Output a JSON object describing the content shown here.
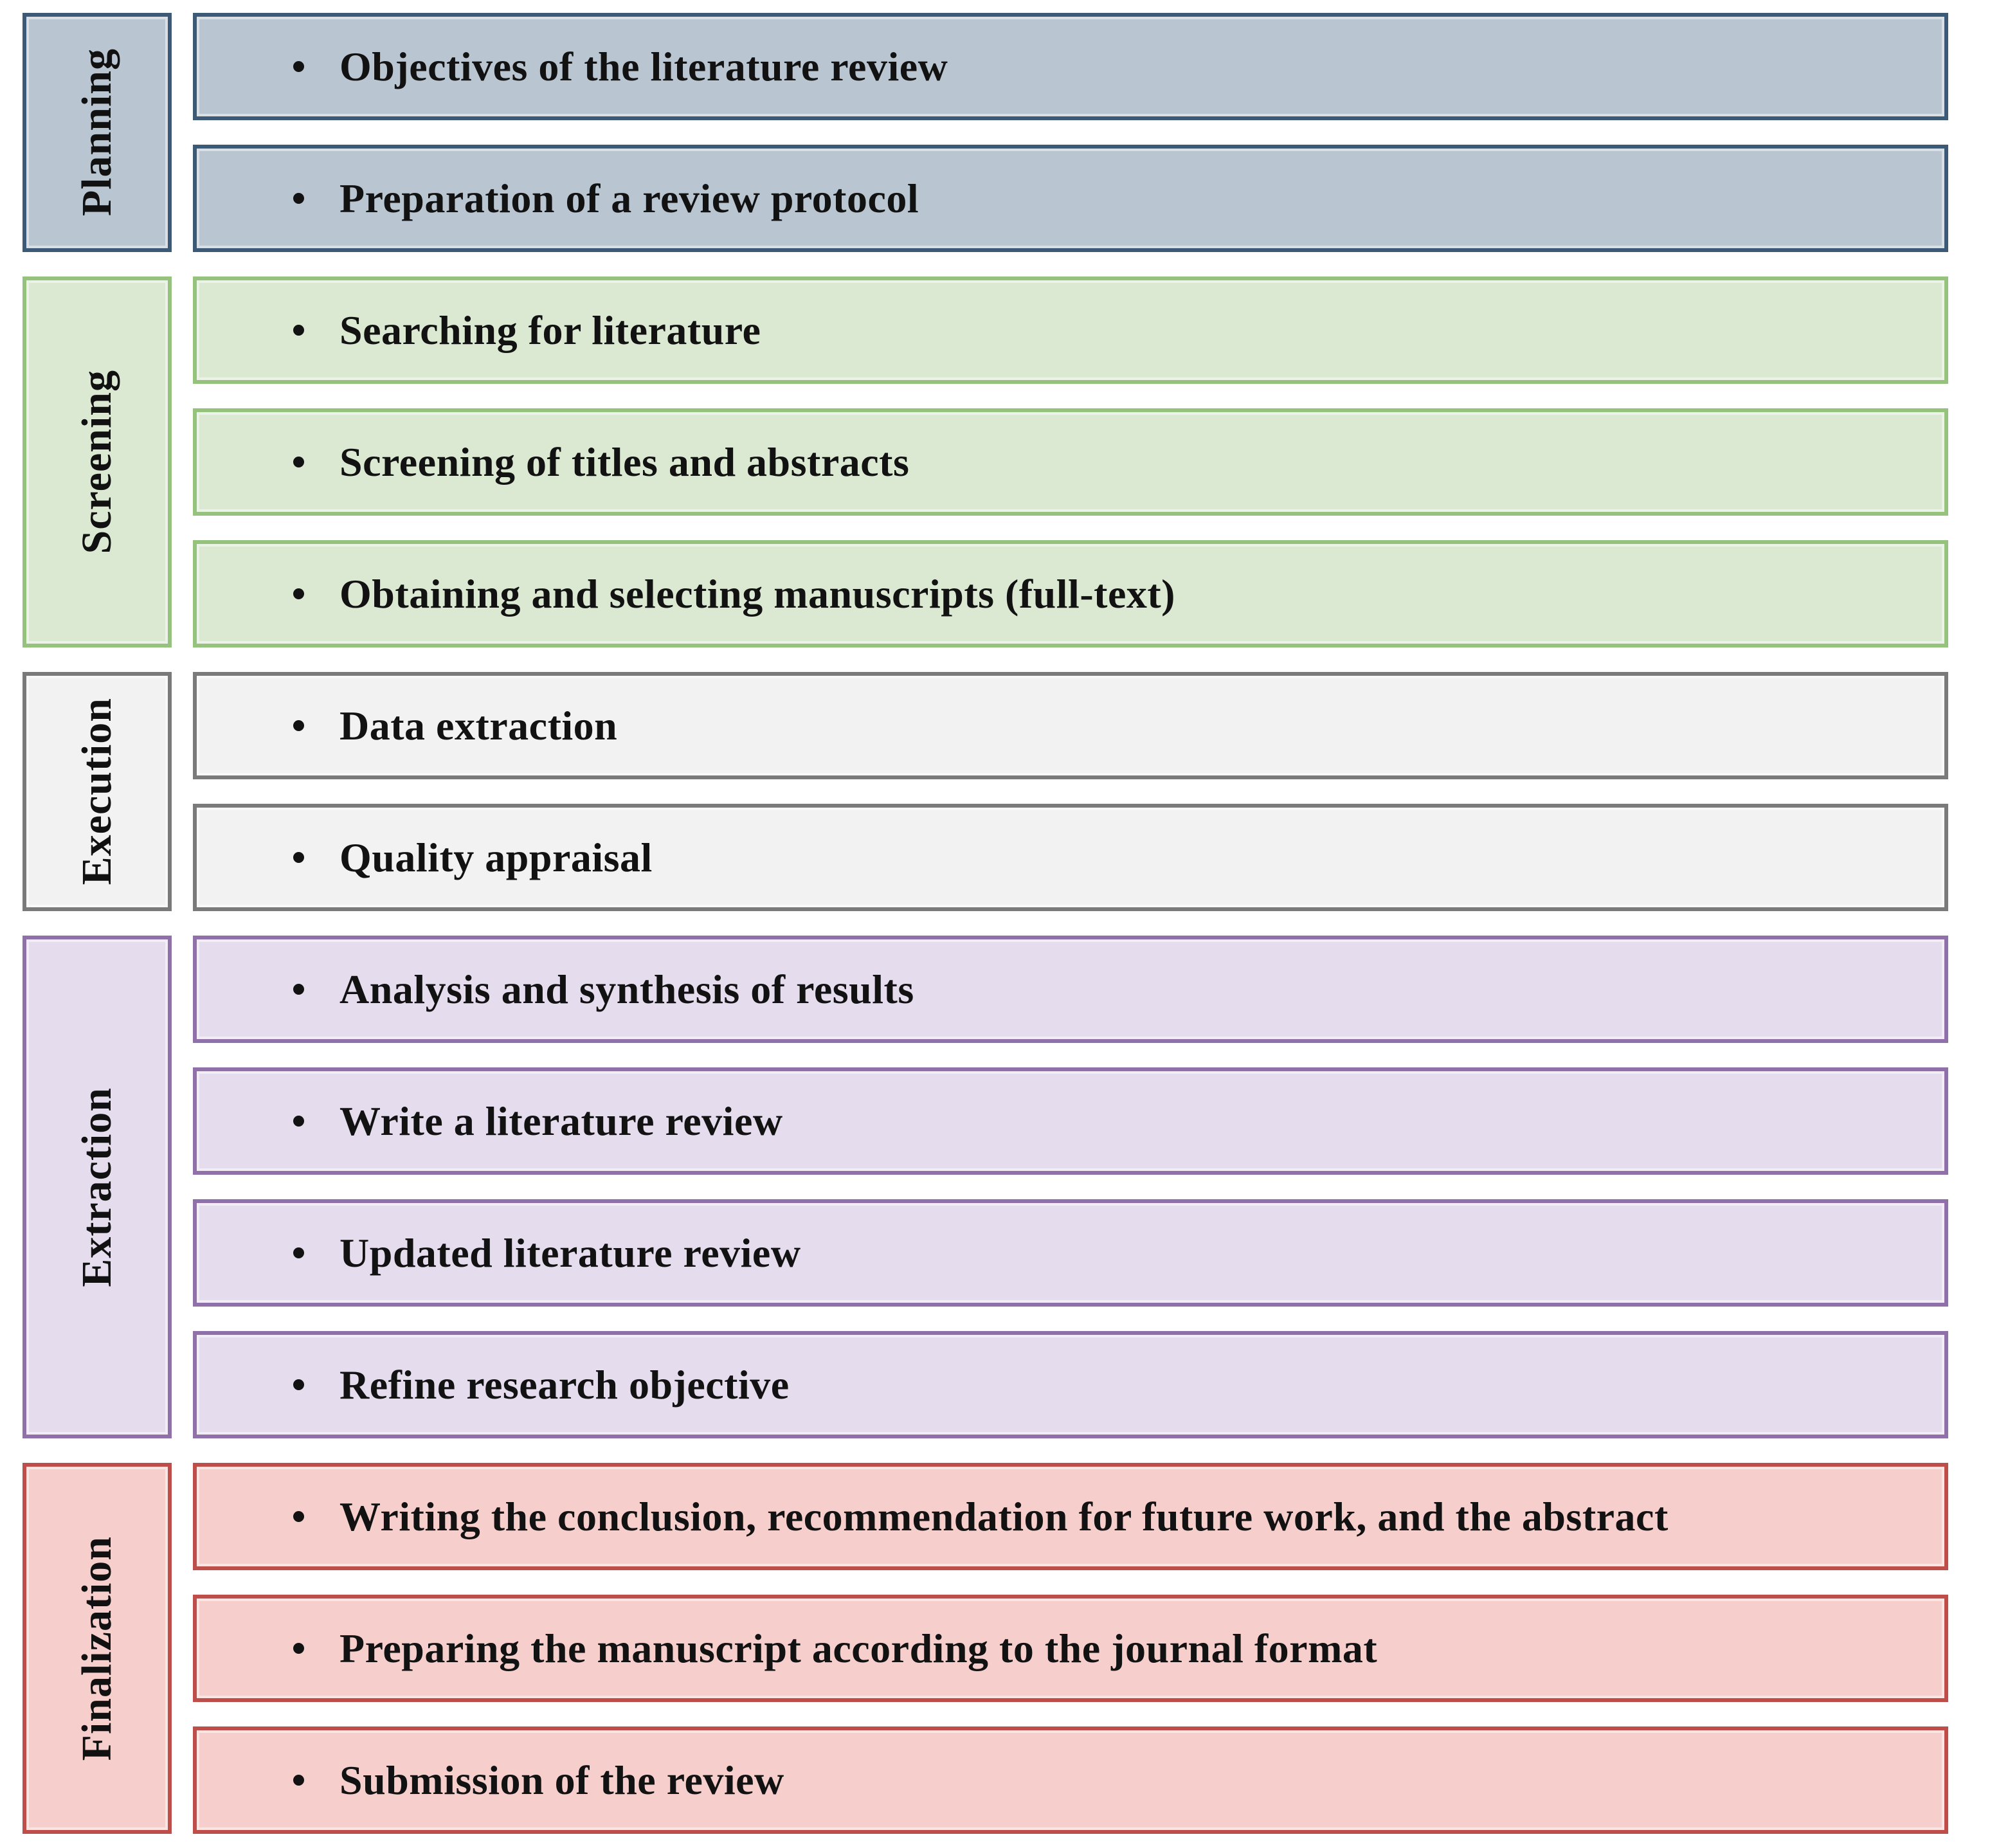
{
  "diagram": {
    "text_color": "#121212",
    "bullet_color": "#121212",
    "background": "#ffffff",
    "sections": [
      {
        "label": "Planning",
        "fill": "#b9c6d1",
        "border": "#3c5a75",
        "items": [
          "Objectives of the literature review",
          "Preparation of a review protocol"
        ]
      },
      {
        "label": "Screening",
        "fill": "#dbe9d2",
        "border": "#95c27d",
        "items": [
          "Searching for literature",
          "Screening of titles and abstracts",
          "Obtaining and selecting manuscripts (full-text)"
        ]
      },
      {
        "label": "Execution",
        "fill": "#f2f2f2",
        "border": "#7a7a7a",
        "items": [
          "Data extraction",
          "Quality appraisal"
        ]
      },
      {
        "label": "Extraction",
        "fill": "#e5dcee",
        "border": "#9070a8",
        "items": [
          "Analysis and synthesis of results",
          "Write a literature review",
          "Updated literature review",
          "Refine research objective"
        ]
      },
      {
        "label": "Finalization",
        "fill": "#f6cfcd",
        "border": "#bd4e49",
        "items": [
          "Writing the conclusion, recommendation for future work, and the abstract",
          "Preparing the manuscript according to the journal format",
          "Submission of the review"
        ]
      }
    ]
  }
}
